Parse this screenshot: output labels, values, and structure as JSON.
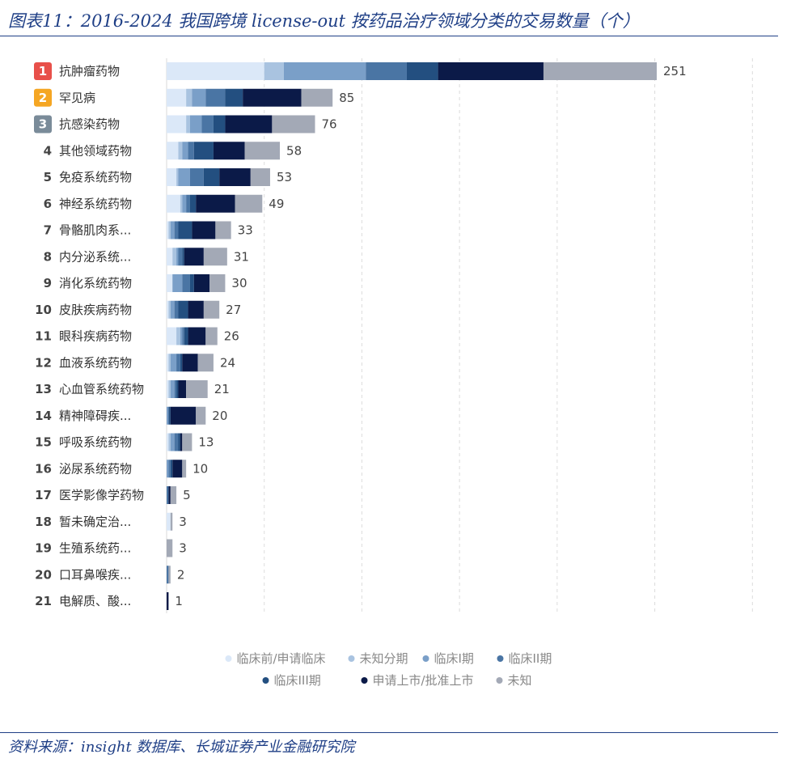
{
  "title": "图表11：2016-2024 我国跨境 license-out 按药品治疗领域分类的交易数量（个）",
  "source": "资料来源：insight 数据库、长城证券产业金融研究院",
  "colors": {
    "series": [
      "#dbe8f8",
      "#a9c3e0",
      "#7a9fc8",
      "#4a75a4",
      "#234f80",
      "#0b1a48",
      "#a3a9b6"
    ],
    "badges": [
      "#e8504a",
      "#f5a623",
      "#7a8b99"
    ]
  },
  "chart_data": {
    "type": "bar",
    "orientation": "horizontal",
    "stacked": true,
    "categories": [
      "抗肿瘤药物",
      "罕见病",
      "抗感染药物",
      "其他领域药物",
      "免疫系统药物",
      "神经系统药物",
      "骨骼肌肉系...",
      "内分泌系统...",
      "消化系统药物",
      "皮肤疾病药物",
      "眼科疾病药物",
      "血液系统药物",
      "心血管系统药物",
      "精神障碍疾...",
      "呼吸系统药物",
      "泌尿系统药物",
      "医学影像学药物",
      "暂未确定治...",
      "生殖系统药...",
      "口耳鼻喉疾...",
      "电解质、酸..."
    ],
    "ranks": [
      "1",
      "2",
      "3",
      "4",
      "5",
      "6",
      "7",
      "8",
      "9",
      "10",
      "11",
      "12",
      "13",
      "14",
      "15",
      "16",
      "17",
      "18",
      "19",
      "20",
      "21"
    ],
    "totals": [
      "251",
      "85",
      "76",
      "58",
      "53",
      "49",
      "33",
      "31",
      "30",
      "27",
      "26",
      "24",
      "21",
      "20",
      "13",
      "10",
      "5",
      "3",
      "3",
      "2",
      "1"
    ],
    "series": [
      {
        "name": "临床前/申请临床",
        "values": [
          50,
          10,
          10,
          6,
          5,
          7,
          1,
          3,
          3,
          1,
          5,
          1,
          1,
          0,
          1,
          0,
          0,
          2,
          0,
          0,
          0
        ]
      },
      {
        "name": "未知分期",
        "values": [
          10,
          3,
          2,
          2,
          1,
          1,
          1,
          2,
          0,
          1,
          2,
          1,
          1,
          0,
          1,
          0,
          0,
          0,
          0,
          0,
          0
        ]
      },
      {
        "name": "临床I期",
        "values": [
          42,
          7,
          6,
          3,
          6,
          2,
          2,
          1,
          5,
          2,
          1,
          3,
          2,
          1,
          2,
          1,
          0,
          0,
          0,
          0,
          0
        ]
      },
      {
        "name": "临床II期",
        "values": [
          21,
          10,
          6,
          3,
          7,
          2,
          2,
          2,
          4,
          2,
          1,
          2,
          1,
          0,
          2,
          1,
          1,
          0,
          0,
          1,
          0
        ]
      },
      {
        "name": "临床III期",
        "values": [
          16,
          9,
          6,
          10,
          8,
          3,
          7,
          1,
          2,
          5,
          2,
          1,
          1,
          1,
          1,
          1,
          0,
          0,
          0,
          0,
          0
        ]
      },
      {
        "name": "申请上市/批准上市",
        "values": [
          54,
          30,
          24,
          16,
          16,
          20,
          12,
          10,
          8,
          8,
          9,
          8,
          4,
          13,
          1,
          5,
          1,
          0,
          0,
          0,
          1
        ]
      },
      {
        "name": "未知",
        "values": [
          58,
          16,
          22,
          18,
          10,
          14,
          8,
          12,
          8,
          8,
          6,
          8,
          11,
          5,
          5,
          2,
          3,
          1,
          3,
          1,
          0
        ]
      }
    ],
    "xlim": [
      0,
      300
    ],
    "grid": true,
    "legend_position": "bottom"
  }
}
